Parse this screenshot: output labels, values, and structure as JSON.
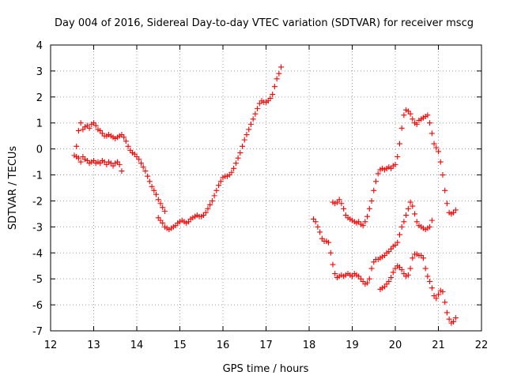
{
  "chart_data": {
    "type": "scatter",
    "title": "Day 004 of 2016, Sidereal Day-to-day VTEC variation (SDTVAR) for receiver mscg",
    "xlabel": "GPS time / hours",
    "ylabel": "SDTVAR / TECUs",
    "xlim": [
      12,
      22
    ],
    "ylim": [
      -7,
      4
    ],
    "xticks": [
      "12",
      "13",
      "14",
      "15",
      "16",
      "17",
      "18",
      "19",
      "20",
      "21",
      "22"
    ],
    "yticks": [
      "4",
      "3",
      "2",
      "1",
      "0",
      "-1",
      "-2",
      "-3",
      "-4",
      "-5",
      "-6",
      "-7"
    ],
    "grid": true,
    "legend": "none",
    "marker": "plus",
    "color": "#ff0000",
    "series": [
      {
        "values": [
          [
            12.55,
            -0.25
          ],
          [
            12.6,
            0.1
          ],
          [
            12.65,
            0.7
          ],
          [
            12.7,
            1.0
          ],
          [
            12.75,
            0.75
          ],
          [
            12.8,
            0.85
          ],
          [
            12.85,
            0.9
          ],
          [
            12.9,
            0.8
          ],
          [
            12.95,
            0.95
          ],
          [
            13.0,
            1.0
          ],
          [
            13.05,
            0.9
          ],
          [
            13.1,
            0.75
          ],
          [
            13.15,
            0.7
          ],
          [
            13.2,
            0.6
          ],
          [
            13.25,
            0.5
          ],
          [
            13.3,
            0.5
          ],
          [
            13.35,
            0.55
          ],
          [
            13.4,
            0.5
          ],
          [
            13.45,
            0.45
          ],
          [
            13.5,
            0.4
          ],
          [
            13.55,
            0.45
          ],
          [
            13.6,
            0.5
          ],
          [
            13.65,
            0.55
          ],
          [
            13.7,
            0.45
          ],
          [
            13.75,
            0.3
          ],
          [
            13.8,
            0.1
          ],
          [
            13.85,
            -0.05
          ],
          [
            13.9,
            -0.15
          ],
          [
            13.95,
            -0.2
          ],
          [
            14.0,
            -0.3
          ],
          [
            14.05,
            -0.4
          ],
          [
            14.1,
            -0.55
          ],
          [
            14.15,
            -0.7
          ],
          [
            14.2,
            -0.85
          ],
          [
            14.25,
            -1.05
          ],
          [
            14.3,
            -1.25
          ],
          [
            14.35,
            -1.45
          ],
          [
            14.4,
            -1.6
          ],
          [
            14.45,
            -1.75
          ],
          [
            14.5,
            -1.95
          ],
          [
            14.55,
            -2.1
          ],
          [
            14.6,
            -2.25
          ],
          [
            14.65,
            -2.4
          ]
        ]
      },
      {
        "values": [
          [
            12.6,
            -0.3
          ],
          [
            12.65,
            -0.35
          ],
          [
            12.7,
            -0.5
          ],
          [
            12.75,
            -0.3
          ],
          [
            12.8,
            -0.4
          ],
          [
            12.85,
            -0.45
          ],
          [
            12.9,
            -0.55
          ],
          [
            12.95,
            -0.5
          ],
          [
            13.0,
            -0.45
          ],
          [
            13.05,
            -0.55
          ],
          [
            13.1,
            -0.5
          ],
          [
            13.15,
            -0.55
          ],
          [
            13.2,
            -0.45
          ],
          [
            13.25,
            -0.5
          ],
          [
            13.3,
            -0.6
          ],
          [
            13.35,
            -0.5
          ],
          [
            13.4,
            -0.55
          ],
          [
            13.45,
            -0.65
          ],
          [
            13.5,
            -0.55
          ],
          [
            13.55,
            -0.5
          ],
          [
            13.6,
            -0.6
          ],
          [
            13.65,
            -0.85
          ]
        ]
      },
      {
        "values": [
          [
            14.5,
            -2.65
          ],
          [
            14.55,
            -2.75
          ],
          [
            14.6,
            -2.85
          ],
          [
            14.65,
            -3.0
          ],
          [
            14.7,
            -3.05
          ],
          [
            14.75,
            -3.1
          ],
          [
            14.8,
            -3.05
          ],
          [
            14.85,
            -3.0
          ],
          [
            14.9,
            -2.95
          ],
          [
            14.95,
            -2.85
          ],
          [
            15.0,
            -2.8
          ],
          [
            15.05,
            -2.75
          ],
          [
            15.1,
            -2.8
          ],
          [
            15.15,
            -2.85
          ],
          [
            15.2,
            -2.8
          ],
          [
            15.25,
            -2.7
          ],
          [
            15.3,
            -2.65
          ],
          [
            15.35,
            -2.6
          ],
          [
            15.4,
            -2.55
          ],
          [
            15.45,
            -2.6
          ],
          [
            15.5,
            -2.6
          ],
          [
            15.55,
            -2.55
          ],
          [
            15.6,
            -2.45
          ],
          [
            15.65,
            -2.3
          ],
          [
            15.7,
            -2.15
          ],
          [
            15.75,
            -2.0
          ],
          [
            15.8,
            -1.8
          ],
          [
            15.85,
            -1.6
          ],
          [
            15.9,
            -1.4
          ],
          [
            15.95,
            -1.25
          ],
          [
            16.0,
            -1.1
          ],
          [
            16.05,
            -1.05
          ],
          [
            16.1,
            -1.05
          ],
          [
            16.15,
            -1.0
          ],
          [
            16.2,
            -0.9
          ],
          [
            16.25,
            -0.75
          ],
          [
            16.3,
            -0.55
          ],
          [
            16.35,
            -0.35
          ],
          [
            16.4,
            -0.15
          ],
          [
            16.45,
            0.1
          ],
          [
            16.5,
            0.35
          ],
          [
            16.55,
            0.55
          ],
          [
            16.6,
            0.75
          ],
          [
            16.65,
            0.95
          ],
          [
            16.7,
            1.15
          ],
          [
            16.75,
            1.35
          ],
          [
            16.8,
            1.55
          ],
          [
            16.85,
            1.75
          ],
          [
            16.9,
            1.85
          ],
          [
            16.95,
            1.8
          ],
          [
            17.0,
            1.8
          ],
          [
            17.05,
            1.85
          ],
          [
            17.1,
            1.95
          ],
          [
            17.15,
            2.1
          ],
          [
            17.2,
            2.4
          ],
          [
            17.25,
            2.7
          ],
          [
            17.3,
            2.9
          ],
          [
            17.35,
            3.15
          ]
        ]
      },
      {
        "values": [
          [
            18.1,
            -2.7
          ],
          [
            18.15,
            -2.8
          ],
          [
            18.2,
            -3.0
          ],
          [
            18.25,
            -3.2
          ],
          [
            18.3,
            -3.45
          ],
          [
            18.35,
            -3.55
          ],
          [
            18.4,
            -3.55
          ],
          [
            18.45,
            -3.6
          ],
          [
            18.5,
            -4.0
          ],
          [
            18.55,
            -4.45
          ],
          [
            18.6,
            -4.8
          ],
          [
            18.65,
            -4.95
          ],
          [
            18.7,
            -4.9
          ],
          [
            18.75,
            -4.85
          ],
          [
            18.8,
            -4.9
          ],
          [
            18.85,
            -4.85
          ],
          [
            18.9,
            -4.8
          ],
          [
            18.95,
            -4.85
          ],
          [
            19.0,
            -4.9
          ],
          [
            19.05,
            -4.8
          ],
          [
            19.1,
            -4.85
          ],
          [
            19.15,
            -4.9
          ],
          [
            19.2,
            -5.0
          ],
          [
            19.25,
            -5.1
          ],
          [
            19.3,
            -5.2
          ],
          [
            19.35,
            -5.15
          ],
          [
            19.4,
            -5.0
          ],
          [
            19.45,
            -4.6
          ],
          [
            19.5,
            -4.35
          ],
          [
            19.55,
            -4.25
          ],
          [
            19.6,
            -4.25
          ],
          [
            19.65,
            -4.2
          ],
          [
            19.7,
            -4.15
          ],
          [
            19.75,
            -4.1
          ],
          [
            19.8,
            -4.0
          ],
          [
            19.85,
            -3.95
          ],
          [
            19.9,
            -3.85
          ],
          [
            19.95,
            -3.75
          ],
          [
            20.0,
            -3.7
          ],
          [
            20.05,
            -3.6
          ],
          [
            20.1,
            -3.3
          ],
          [
            20.15,
            -3.0
          ],
          [
            20.2,
            -2.8
          ],
          [
            20.25,
            -2.55
          ],
          [
            20.3,
            -2.3
          ],
          [
            20.35,
            -2.05
          ],
          [
            20.4,
            -2.2
          ],
          [
            20.45,
            -2.5
          ],
          [
            20.5,
            -2.8
          ],
          [
            20.55,
            -2.95
          ],
          [
            20.6,
            -3.0
          ],
          [
            20.65,
            -3.05
          ],
          [
            20.7,
            -3.1
          ],
          [
            20.75,
            -3.05
          ],
          [
            20.8,
            -3.0
          ],
          [
            20.85,
            -2.75
          ]
        ]
      },
      {
        "values": [
          [
            18.55,
            -2.05
          ],
          [
            18.6,
            -2.1
          ],
          [
            18.65,
            -2.05
          ],
          [
            18.7,
            -1.95
          ],
          [
            18.75,
            -2.1
          ],
          [
            18.8,
            -2.3
          ],
          [
            18.85,
            -2.55
          ],
          [
            18.9,
            -2.65
          ],
          [
            18.95,
            -2.7
          ],
          [
            19.0,
            -2.75
          ],
          [
            19.05,
            -2.8
          ],
          [
            19.1,
            -2.85
          ],
          [
            19.15,
            -2.8
          ],
          [
            19.2,
            -2.9
          ],
          [
            19.25,
            -2.95
          ],
          [
            19.3,
            -2.8
          ],
          [
            19.35,
            -2.6
          ],
          [
            19.4,
            -2.3
          ],
          [
            19.45,
            -2.0
          ],
          [
            19.5,
            -1.6
          ],
          [
            19.55,
            -1.25
          ],
          [
            19.6,
            -0.95
          ],
          [
            19.65,
            -0.8
          ],
          [
            19.7,
            -0.75
          ],
          [
            19.75,
            -0.8
          ],
          [
            19.8,
            -0.75
          ],
          [
            19.85,
            -0.7
          ],
          [
            19.9,
            -0.75
          ],
          [
            19.95,
            -0.65
          ],
          [
            20.0,
            -0.6
          ],
          [
            20.05,
            -0.3
          ],
          [
            20.1,
            0.2
          ],
          [
            20.15,
            0.8
          ],
          [
            20.2,
            1.3
          ],
          [
            20.25,
            1.5
          ],
          [
            20.3,
            1.45
          ],
          [
            20.35,
            1.35
          ],
          [
            20.4,
            1.15
          ],
          [
            20.45,
            1.0
          ],
          [
            20.5,
            0.95
          ],
          [
            20.55,
            1.1
          ],
          [
            20.6,
            1.15
          ],
          [
            20.65,
            1.2
          ],
          [
            20.7,
            1.25
          ],
          [
            20.75,
            1.3
          ],
          [
            20.8,
            1.0
          ],
          [
            20.85,
            0.6
          ],
          [
            20.9,
            0.2
          ],
          [
            20.95,
            0.05
          ],
          [
            21.0,
            -0.1
          ],
          [
            21.05,
            -0.5
          ],
          [
            21.1,
            -1.0
          ],
          [
            21.15,
            -1.6
          ],
          [
            21.2,
            -2.1
          ],
          [
            21.25,
            -2.45
          ],
          [
            21.3,
            -2.5
          ],
          [
            21.35,
            -2.45
          ],
          [
            21.4,
            -2.35
          ]
        ]
      },
      {
        "values": [
          [
            19.65,
            -5.4
          ],
          [
            19.7,
            -5.35
          ],
          [
            19.75,
            -5.3
          ],
          [
            19.8,
            -5.2
          ],
          [
            19.85,
            -5.1
          ],
          [
            19.9,
            -4.95
          ],
          [
            19.95,
            -4.75
          ],
          [
            20.0,
            -4.6
          ],
          [
            20.05,
            -4.5
          ],
          [
            20.1,
            -4.55
          ],
          [
            20.15,
            -4.65
          ],
          [
            20.2,
            -4.8
          ],
          [
            20.25,
            -4.9
          ],
          [
            20.3,
            -4.85
          ],
          [
            20.35,
            -4.6
          ],
          [
            20.4,
            -4.2
          ],
          [
            20.45,
            -4.05
          ],
          [
            20.5,
            -4.05
          ],
          [
            20.55,
            -4.1
          ],
          [
            20.6,
            -4.1
          ],
          [
            20.65,
            -4.2
          ],
          [
            20.7,
            -4.6
          ],
          [
            20.75,
            -4.9
          ],
          [
            20.8,
            -5.1
          ],
          [
            20.85,
            -5.35
          ],
          [
            20.9,
            -5.65
          ],
          [
            20.95,
            -5.75
          ],
          [
            21.0,
            -5.6
          ],
          [
            21.05,
            -5.45
          ],
          [
            21.1,
            -5.5
          ],
          [
            21.15,
            -5.9
          ],
          [
            21.2,
            -6.3
          ],
          [
            21.25,
            -6.55
          ],
          [
            21.3,
            -6.7
          ],
          [
            21.35,
            -6.65
          ],
          [
            21.4,
            -6.5
          ]
        ]
      }
    ]
  }
}
